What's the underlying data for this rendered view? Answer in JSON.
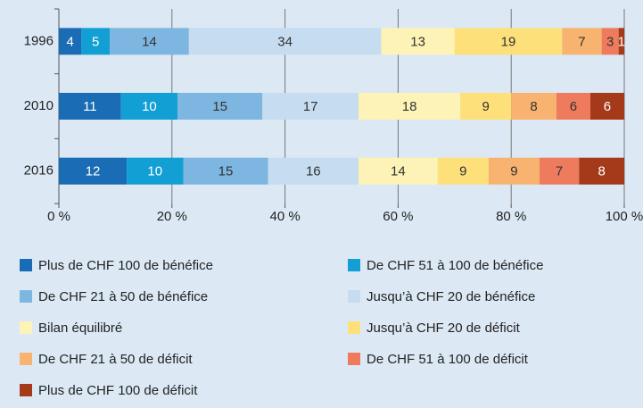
{
  "chart_data": {
    "type": "stacked_bar_horizontal",
    "categories": [
      "1996",
      "2010",
      "2016"
    ],
    "series": [
      {
        "name": "Plus de CHF 100 de bénéfice",
        "color": "#1a6db5",
        "values": [
          4,
          11,
          12
        ]
      },
      {
        "name": "De CHF 51 à 100 de bénéfice",
        "color": "#12a0d4",
        "values": [
          5,
          10,
          10
        ]
      },
      {
        "name": "De CHF 21 à 50 de bénéfice",
        "color": "#7db6e0",
        "values": [
          14,
          15,
          15
        ]
      },
      {
        "name": "Jusqu’à CHF 20 de bénéfice",
        "color": "#c6dcf0",
        "values": [
          34,
          17,
          16
        ]
      },
      {
        "name": "Bilan équilibré",
        "color": "#fdf3b6",
        "values": [
          13,
          18,
          14
        ]
      },
      {
        "name": "Jusqu’à CHF 20 de déficit",
        "color": "#fde07a",
        "values": [
          19,
          9,
          9
        ]
      },
      {
        "name": "De CHF 21 à 50 de déficit",
        "color": "#f7b36f",
        "values": [
          7,
          8,
          9
        ]
      },
      {
        "name": "De CHF 51 à 100 de déficit",
        "color": "#ef7b5e",
        "values": [
          3,
          6,
          7
        ]
      },
      {
        "name": "Plus de CHF 100 de déficit",
        "color": "#a53a1a",
        "values": [
          1,
          6,
          8
        ]
      }
    ],
    "xlim": [
      0,
      100
    ],
    "xticks": [
      {
        "value": 0,
        "label": "0 %"
      },
      {
        "value": 20,
        "label": "20 %"
      },
      {
        "value": 40,
        "label": "40 %"
      },
      {
        "value": 60,
        "label": "60 %"
      },
      {
        "value": 80,
        "label": "80 %"
      },
      {
        "value": 100,
        "label": "100 %"
      }
    ],
    "grid": true
  }
}
